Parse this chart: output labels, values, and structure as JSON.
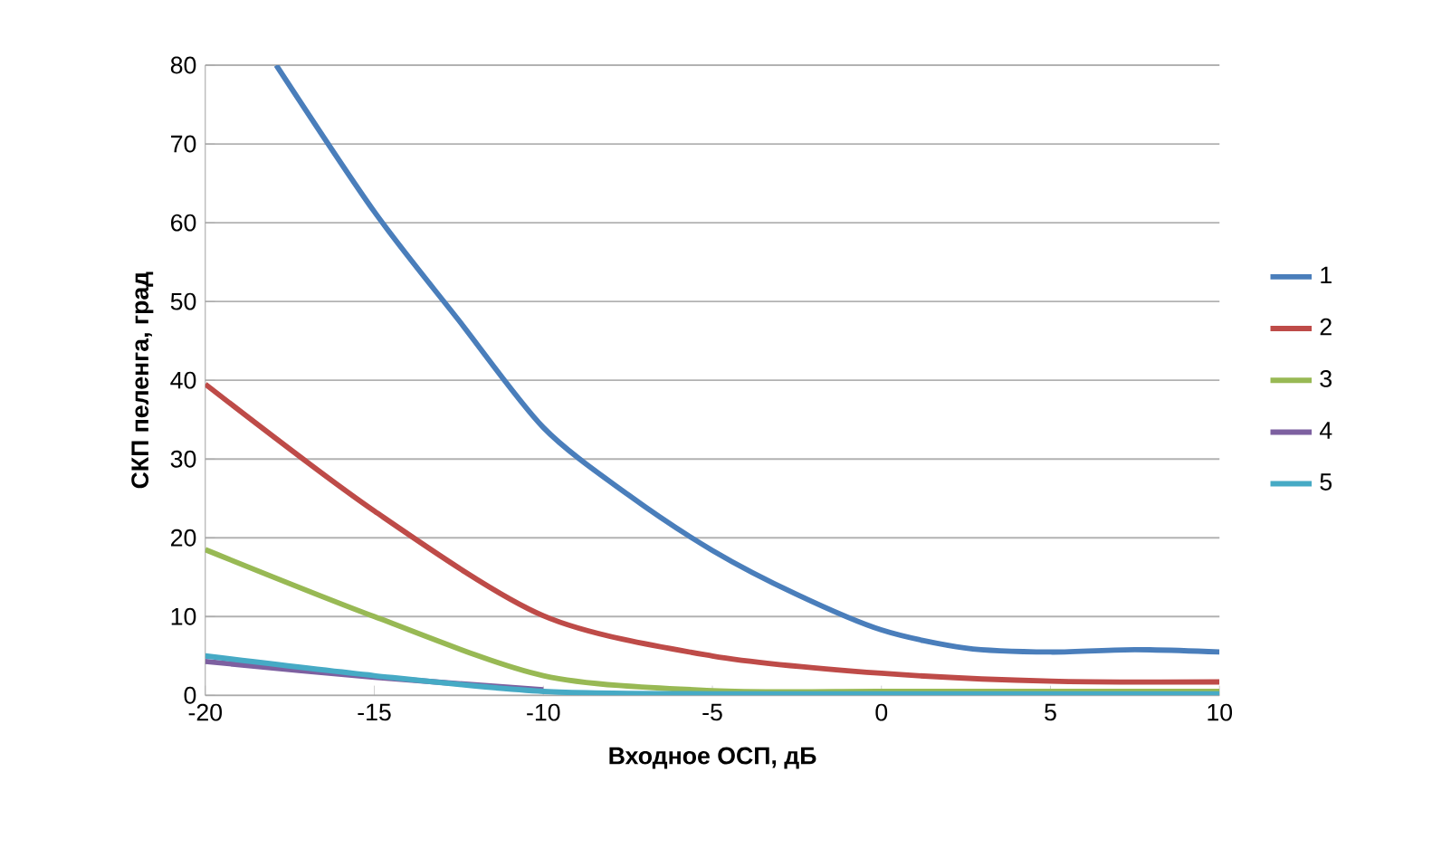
{
  "chart_data": {
    "type": "line",
    "xlabel": "Входное ОСП, дБ",
    "ylabel": "СКП пеленга, град",
    "xlim": [
      -20,
      10
    ],
    "ylim": [
      0,
      80
    ],
    "xticks": [
      -20,
      -15,
      -10,
      -5,
      0,
      5,
      10
    ],
    "yticks": [
      0,
      10,
      20,
      30,
      40,
      50,
      60,
      70,
      80
    ],
    "grid": "y",
    "legend": "right",
    "marker": "none",
    "line_style": "solid",
    "series": [
      {
        "name": "1",
        "color": "#4a7ebb",
        "x": [
          -17.9,
          -15,
          -12.5,
          -10,
          -7.5,
          -5,
          -2.5,
          0,
          2.5,
          5,
          7.5,
          10
        ],
        "values": [
          80,
          61.4,
          47.6,
          34,
          25.5,
          18.4,
          12.8,
          8.3,
          6,
          5.5,
          5.8,
          5.5
        ]
      },
      {
        "name": "2",
        "color": "#be4b48",
        "x": [
          -20,
          -15,
          -10,
          -5,
          0,
          5,
          10
        ],
        "values": [
          39.5,
          23.4,
          10.1,
          5,
          2.8,
          1.8,
          1.7
        ]
      },
      {
        "name": "3",
        "color": "#98b954",
        "x": [
          -20,
          -15,
          -10,
          -5,
          0,
          5,
          10
        ],
        "values": [
          18.5,
          10,
          2.5,
          0.6,
          0.5,
          0.5,
          0.5
        ]
      },
      {
        "name": "4",
        "color": "#7d60a0",
        "x": [
          -20,
          -15,
          -10
        ],
        "values": [
          4.3,
          2.3,
          0.7
        ]
      },
      {
        "name": "5",
        "color": "#46aac5",
        "x": [
          -20,
          -15,
          -10,
          -5,
          0,
          5,
          10
        ],
        "values": [
          5,
          2.5,
          0.5,
          0.2,
          0.2,
          0.2,
          0.2
        ]
      }
    ]
  }
}
